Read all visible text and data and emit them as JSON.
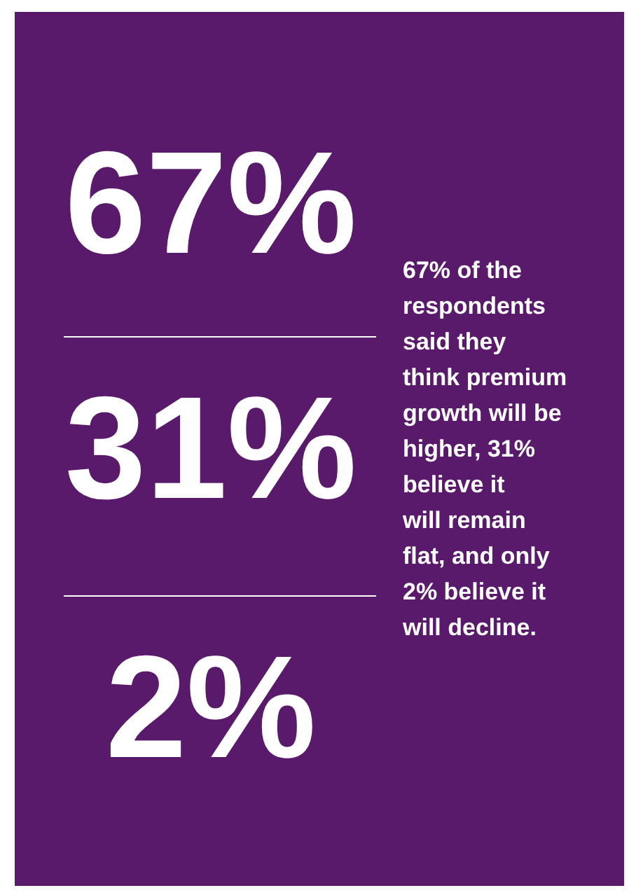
{
  "chart_data": {
    "type": "other",
    "values": [
      67,
      31,
      2
    ],
    "value_labels": [
      "67%",
      "31%",
      "2%"
    ],
    "color": "#5a1a6b",
    "annotations": [
      "67% of the respondents said they think premium growth will be higher, 31% believe it will remain flat, and only 2% believe it will decline."
    ]
  }
}
